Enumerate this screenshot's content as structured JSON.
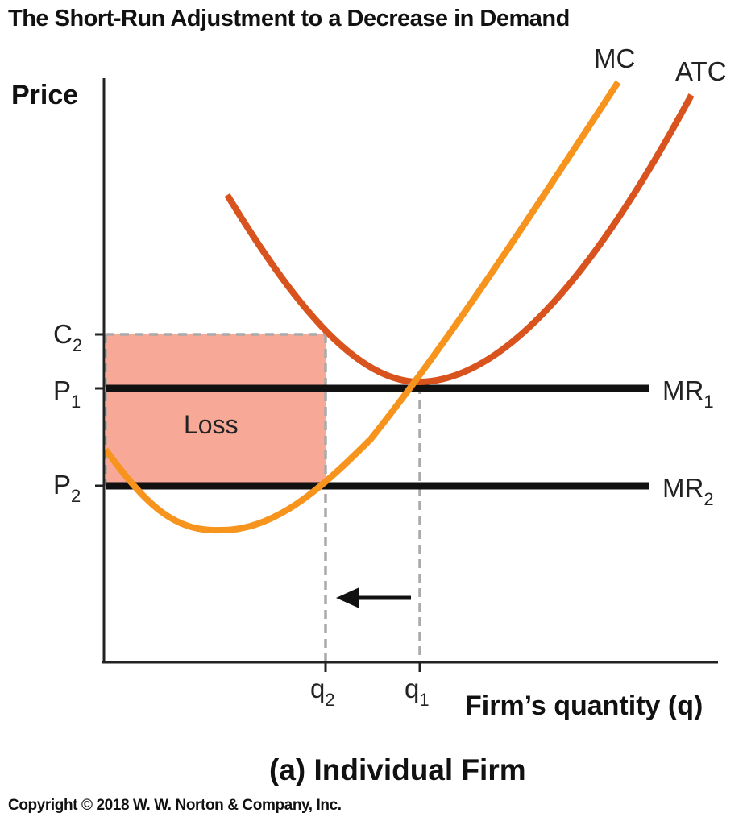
{
  "title": "The Short-Run Adjustment to a Decrease in Demand",
  "caption": "(a) Individual Firm",
  "copyright": "Copyright © 2018 W. W. Norton & Company, Inc.",
  "chart_data": {
    "type": "line",
    "xlabel": "Firm’s quantity (q)",
    "ylabel": "Price",
    "y_ticks": [
      {
        "main": "C",
        "sub": "2"
      },
      {
        "main": "P",
        "sub": "1"
      },
      {
        "main": "P",
        "sub": "2"
      }
    ],
    "x_ticks": [
      {
        "main": "q",
        "sub": "2"
      },
      {
        "main": "q",
        "sub": "1"
      }
    ],
    "series": [
      {
        "name": "MC",
        "color": "#f7941d"
      },
      {
        "name": "ATC",
        "color": "#d9531e"
      }
    ],
    "horizontal_lines": [
      {
        "main": "MR",
        "sub": "1",
        "color": "#111111"
      },
      {
        "main": "MR",
        "sub": "2",
        "color": "#111111"
      }
    ],
    "shaded_region": {
      "label": "Loss",
      "color": "#f7a896"
    },
    "annotation": "arrow-left from q1 toward q2",
    "grid": false
  }
}
